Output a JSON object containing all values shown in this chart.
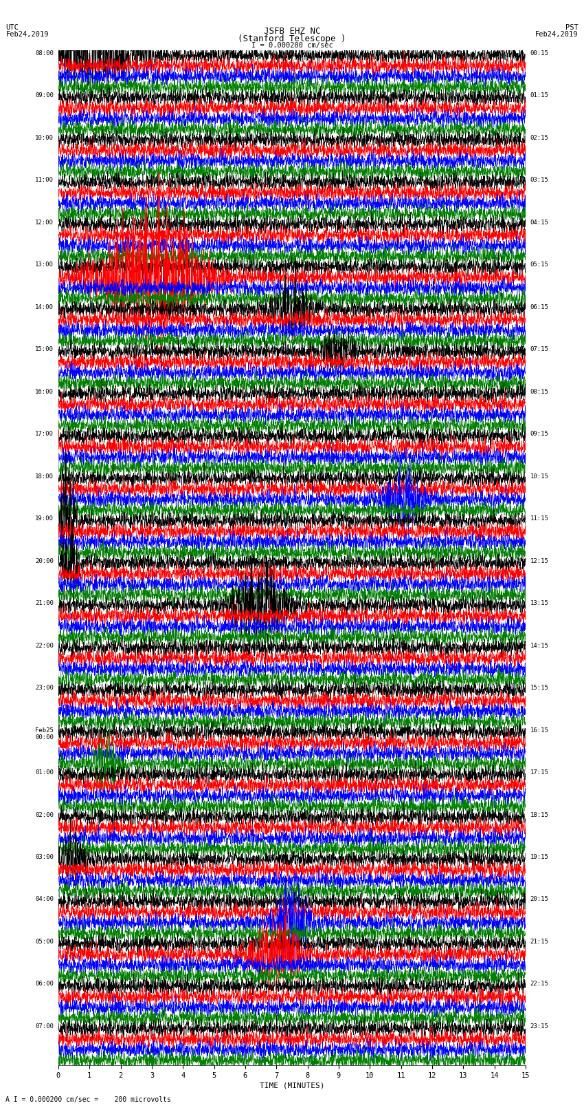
{
  "title_line1": "JSFB EHZ NC",
  "title_line2": "(Stanford Telescope )",
  "scale_label": "I = 0.000200 cm/sec",
  "left_header_line1": "UTC",
  "left_header_line2": "Feb24,2019",
  "right_header_line1": "PST",
  "right_header_line2": "Feb24,2019",
  "bottom_label": "A I = 0.000200 cm/sec =    200 microvolts",
  "xlabel": "TIME (MINUTES)",
  "utc_times": [
    "08:00",
    "09:00",
    "10:00",
    "11:00",
    "12:00",
    "13:00",
    "14:00",
    "15:00",
    "16:00",
    "17:00",
    "18:00",
    "19:00",
    "20:00",
    "21:00",
    "22:00",
    "23:00",
    "Feb25\n00:00",
    "01:00",
    "02:00",
    "03:00",
    "04:00",
    "05:00",
    "06:00",
    "07:00"
  ],
  "pst_times": [
    "00:15",
    "01:15",
    "02:15",
    "03:15",
    "04:15",
    "05:15",
    "06:15",
    "07:15",
    "08:15",
    "09:15",
    "10:15",
    "11:15",
    "12:15",
    "13:15",
    "14:15",
    "15:15",
    "16:15",
    "17:15",
    "18:15",
    "19:15",
    "20:15",
    "21:15",
    "22:15",
    "23:15"
  ],
  "trace_colors": [
    "black",
    "red",
    "blue",
    "green"
  ],
  "bg_color": "white",
  "n_row_groups": 24,
  "n_traces_per_group": 4,
  "x_min": 0,
  "x_max": 15,
  "x_ticks": [
    0,
    1,
    2,
    3,
    4,
    5,
    6,
    7,
    8,
    9,
    10,
    11,
    12,
    13,
    14,
    15
  ],
  "noise_seed": 42,
  "grid_color": "#888888",
  "grid_alpha": 0.5,
  "grid_linewidth": 0.4,
  "trace_linewidth": 0.4,
  "trace_amplitude": 0.09,
  "n_points": 2700
}
